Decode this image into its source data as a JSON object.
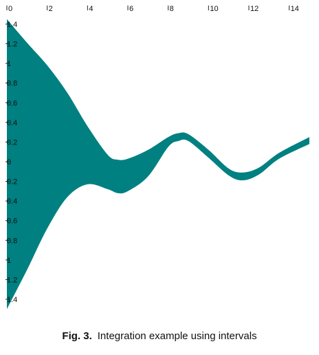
{
  "chart_data": {
    "type": "area",
    "title": "",
    "xlabel": "",
    "ylabel": "",
    "xlim": [
      0,
      15
    ],
    "ylim": [
      -1.5,
      1.5
    ],
    "x_ticks": [
      {
        "value": 0,
        "label": "0"
      },
      {
        "value": 2,
        "label": "2"
      },
      {
        "value": 4,
        "label": "4"
      },
      {
        "value": 6,
        "label": "6"
      },
      {
        "value": 8,
        "label": "8"
      },
      {
        "value": 10,
        "label": "10"
      },
      {
        "value": 12,
        "label": "12"
      },
      {
        "value": 14,
        "label": "14"
      }
    ],
    "y_ticks": [
      {
        "value": 1.4,
        "label": "1.4"
      },
      {
        "value": 1.2,
        "label": "1.2"
      },
      {
        "value": 1.0,
        "label": "1"
      },
      {
        "value": 0.8,
        "label": "0.8"
      },
      {
        "value": 0.6,
        "label": "0.6"
      },
      {
        "value": 0.4,
        "label": "0.4"
      },
      {
        "value": 0.2,
        "label": "0.2"
      },
      {
        "value": 0.0,
        "label": "0"
      },
      {
        "value": -0.2,
        "label": "0.2"
      },
      {
        "value": -0.4,
        "label": "0.4"
      },
      {
        "value": -0.6,
        "label": "0.6"
      },
      {
        "value": -0.8,
        "label": "0.8"
      },
      {
        "value": -1.0,
        "label": "1"
      },
      {
        "value": -1.2,
        "label": "1.2"
      },
      {
        "value": -1.4,
        "label": "1.4"
      }
    ],
    "grid": false,
    "series": [
      {
        "color": "#008080",
        "x": [
          0,
          1,
          2,
          3,
          4,
          5,
          5.5,
          6,
          7,
          8,
          8.5,
          9,
          10,
          11,
          11.7,
          12.5,
          13.5,
          15
        ],
        "upper": [
          1.45,
          1.21,
          0.98,
          0.7,
          0.36,
          0.07,
          0.02,
          0.03,
          0.12,
          0.25,
          0.29,
          0.28,
          0.12,
          -0.07,
          -0.11,
          -0.06,
          0.09,
          0.25
        ],
        "lower": [
          -1.5,
          -1.1,
          -0.68,
          -0.36,
          -0.23,
          -0.28,
          -0.32,
          -0.3,
          -0.15,
          0.15,
          0.21,
          0.21,
          0.04,
          -0.14,
          -0.19,
          -0.13,
          0.03,
          0.18
        ]
      }
    ]
  },
  "caption": {
    "label": "Fig. 3.",
    "text": "Integration example using intervals"
  }
}
